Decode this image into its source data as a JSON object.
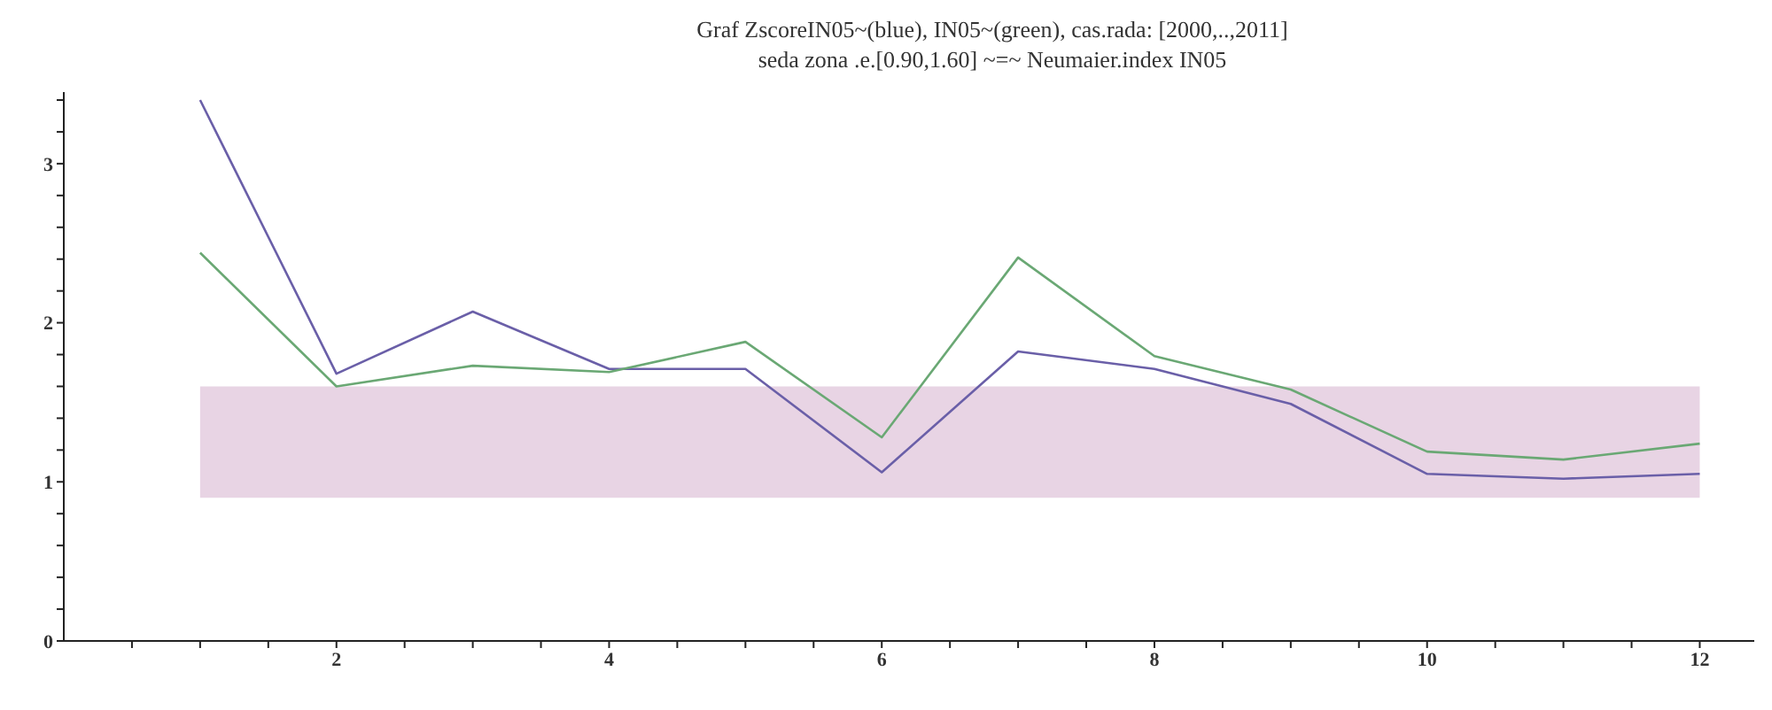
{
  "chart_data": {
    "type": "line",
    "title": "Graf ZscoreIN05~(blue), IN05~(green), cas.rada: [2000,..,2011]",
    "subtitle": "seda zona .e.[0.90,1.60] ~=~ Neumaier.index IN05",
    "x": [
      1,
      2,
      3,
      4,
      5,
      6,
      7,
      8,
      9,
      10,
      11,
      12
    ],
    "series": [
      {
        "color": "#6a5fa8",
        "values": [
          3.4,
          1.68,
          2.07,
          1.71,
          1.71,
          1.06,
          1.82,
          1.71,
          1.49,
          1.05,
          1.02,
          1.05
        ]
      },
      {
        "color": "#6aa874",
        "values": [
          2.44,
          1.6,
          1.73,
          1.69,
          1.88,
          1.28,
          2.41,
          1.79,
          1.58,
          1.19,
          1.14,
          1.24
        ]
      }
    ],
    "bands": [
      {
        "axis": "y",
        "from": 0.9,
        "to": 1.6,
        "color": "#e8d4e4"
      }
    ],
    "xlim": [
      0,
      12.4
    ],
    "ylim": [
      0,
      3.45
    ],
    "xticks": [
      {
        "value": 0.5,
        "label": null
      },
      {
        "value": 1,
        "label": null
      },
      {
        "value": 1.5,
        "label": null
      },
      2,
      {
        "value": 2.5,
        "label": null
      },
      {
        "value": 3,
        "label": null
      },
      {
        "value": 3.5,
        "label": null
      },
      4,
      {
        "value": 4.5,
        "label": null
      },
      {
        "value": 5,
        "label": null
      },
      {
        "value": 5.5,
        "label": null
      },
      6,
      {
        "value": 6.5,
        "label": null
      },
      {
        "value": 7,
        "label": null
      },
      {
        "value": 7.5,
        "label": null
      },
      8,
      {
        "value": 8.5,
        "label": null
      },
      {
        "value": 9,
        "label": null
      },
      {
        "value": 9.5,
        "label": null
      },
      10,
      {
        "value": 10.5,
        "label": null
      },
      {
        "value": 11,
        "label": null
      },
      {
        "value": 11.5,
        "label": null
      },
      12
    ],
    "yticks": [
      0,
      {
        "value": 0.2,
        "label": null
      },
      {
        "value": 0.4,
        "label": null
      },
      {
        "value": 0.6,
        "label": null
      },
      {
        "value": 0.8,
        "label": null
      },
      1,
      {
        "value": 1.2,
        "label": null
      },
      {
        "value": 1.4,
        "label": null
      },
      {
        "value": 1.6,
        "label": null
      },
      {
        "value": 1.8,
        "label": null
      },
      2,
      {
        "value": 2.2,
        "label": null
      },
      {
        "value": 2.4,
        "label": null
      },
      {
        "value": 2.6,
        "label": null
      },
      {
        "value": 2.8,
        "label": null
      },
      3,
      {
        "value": 3.2,
        "label": null
      },
      {
        "value": 3.4,
        "label": null
      }
    ],
    "grid": false,
    "legend": false,
    "marker": "none",
    "line_style": "solid"
  }
}
